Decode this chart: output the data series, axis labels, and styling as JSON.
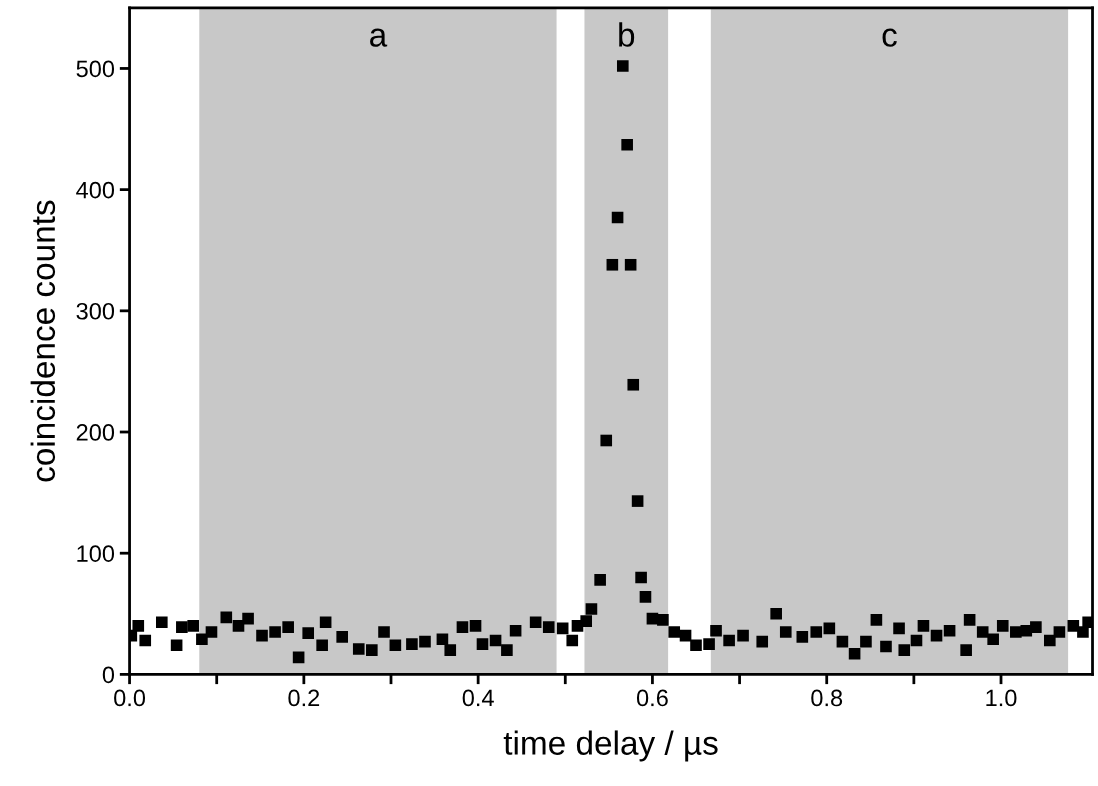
{
  "chart_data": {
    "type": "scatter",
    "xlabel": "time delay / µs",
    "ylabel": "coincidence counts",
    "marker": "square",
    "grid": false,
    "xlim": [
      0,
      1.105
    ],
    "ylim": [
      0,
      550
    ],
    "xticks": [
      {
        "value": 0,
        "label": "0.0"
      },
      {
        "value": 0.1,
        "label": null
      },
      {
        "value": 0.2,
        "label": "0.2"
      },
      {
        "value": 0.3,
        "label": null
      },
      {
        "value": 0.4,
        "label": "0.4"
      },
      {
        "value": 0.5,
        "label": null
      },
      {
        "value": 0.6,
        "label": "0.6"
      },
      {
        "value": 0.7,
        "label": null
      },
      {
        "value": 0.8,
        "label": "0.8"
      },
      {
        "value": 0.9,
        "label": null
      },
      {
        "value": 1.0,
        "label": "1.0"
      }
    ],
    "yticks": [
      0,
      100,
      200,
      300,
      400,
      500
    ],
    "bands": [
      {
        "axis": "x",
        "from": 0.08,
        "to": 0.49,
        "label": "a",
        "color": "#c8c8c8"
      },
      {
        "axis": "x",
        "from": 0.522,
        "to": 0.618,
        "label": "b",
        "color": "#c8c8c8"
      },
      {
        "axis": "x",
        "from": 0.667,
        "to": 1.077,
        "label": "c",
        "color": "#c8c8c8"
      }
    ],
    "series": [
      {
        "color": "#000000",
        "x": [
          0.002,
          0.01,
          0.018,
          0.037,
          0.054,
          0.06,
          0.073,
          0.083,
          0.094,
          0.111,
          0.125,
          0.136,
          0.152,
          0.167,
          0.182,
          0.194,
          0.205,
          0.221,
          0.225,
          0.244,
          0.263,
          0.278,
          0.292,
          0.305,
          0.324,
          0.339,
          0.359,
          0.368,
          0.382,
          0.397,
          0.405,
          0.42,
          0.433,
          0.443,
          0.466,
          0.481,
          0.497,
          0.508,
          0.514,
          0.524,
          0.53,
          0.54,
          0.547,
          0.554,
          0.56,
          0.566,
          0.571,
          0.575,
          0.578,
          0.583,
          0.587,
          0.592,
          0.6,
          0.612,
          0.625,
          0.638,
          0.65,
          0.665,
          0.673,
          0.688,
          0.704,
          0.726,
          0.742,
          0.753,
          0.772,
          0.788,
          0.803,
          0.818,
          0.832,
          0.845,
          0.857,
          0.868,
          0.883,
          0.889,
          0.903,
          0.911,
          0.926,
          0.941,
          0.96,
          0.964,
          0.979,
          0.991,
          1.002,
          1.017,
          1.029,
          1.04,
          1.056,
          1.067,
          1.083,
          1.094,
          1.1
        ],
        "values": [
          32,
          40,
          28,
          43,
          24,
          39,
          40,
          29,
          35,
          47,
          40,
          46,
          32,
          35,
          39,
          14,
          34,
          24,
          43,
          31,
          21,
          20,
          35,
          24,
          25,
          27,
          29,
          20,
          39,
          40,
          25,
          28,
          20,
          36,
          43,
          39,
          38,
          28,
          40,
          44,
          54,
          78,
          193,
          338,
          377,
          502,
          437,
          338,
          239,
          143,
          80,
          64,
          46,
          45,
          35,
          32,
          24,
          25,
          36,
          28,
          32,
          27,
          50,
          35,
          31,
          35,
          38,
          27,
          17,
          27,
          45,
          23,
          38,
          20,
          28,
          40,
          32,
          36,
          20,
          45,
          35,
          29,
          40,
          35,
          36,
          39,
          28,
          35,
          40,
          35,
          43
        ]
      }
    ]
  }
}
